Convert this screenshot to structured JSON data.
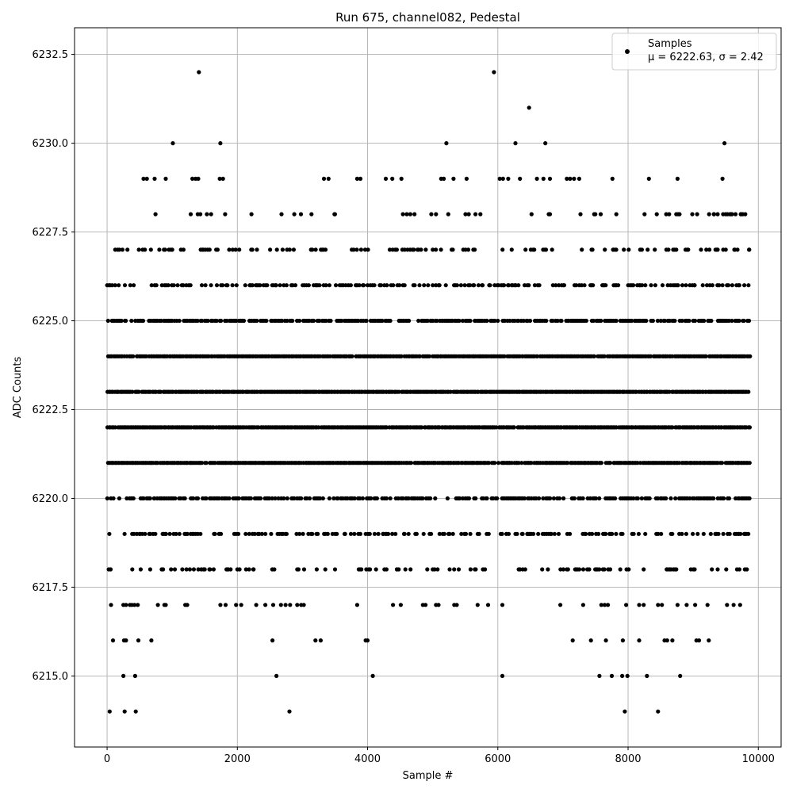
{
  "chart_data": {
    "type": "scatter",
    "title": "Run 675, channel082, Pedestal",
    "xlabel": "Sample #",
    "ylabel": "ADC Counts",
    "xlim": [
      -500,
      10350
    ],
    "ylim": [
      6213.0,
      6233.25
    ],
    "x_ticks": [
      0,
      2000,
      4000,
      6000,
      8000,
      10000
    ],
    "x_tick_labels": [
      "0",
      "2000",
      "4000",
      "6000",
      "8000",
      "10000"
    ],
    "y_ticks": [
      6215.0,
      6217.5,
      6220.0,
      6222.5,
      6225.0,
      6227.5,
      6230.0,
      6232.5
    ],
    "y_tick_labels": [
      "6215.0",
      "6217.5",
      "6220.0",
      "6222.5",
      "6225.0",
      "6227.5",
      "6230.0",
      "6232.5"
    ],
    "grid": true,
    "legend_placement": "top-right",
    "marker_color": "#000000",
    "series": [
      {
        "name": "Samples",
        "stats_label": "μ = 6222.63, σ = 2.42",
        "mean": 6222.63,
        "std": 2.42,
        "n_samples": 9860,
        "x_range": [
          0,
          9860
        ],
        "points": [
          [
            1410,
            6232
          ],
          [
            5940,
            6232
          ],
          [
            6480,
            6231
          ],
          [
            1010,
            6230
          ],
          [
            1740,
            6230
          ],
          [
            5210,
            6230
          ],
          [
            6270,
            6230
          ],
          [
            6730,
            6230
          ],
          [
            9480,
            6230
          ],
          [
            560,
            6229
          ],
          [
            610,
            6229
          ],
          [
            730,
            6229
          ],
          [
            900,
            6229
          ],
          [
            1310,
            6229
          ],
          [
            1360,
            6229
          ],
          [
            1400,
            6229
          ],
          [
            1730,
            6229
          ],
          [
            1780,
            6229
          ],
          [
            3330,
            6229
          ],
          [
            3400,
            6229
          ],
          [
            3840,
            6229
          ],
          [
            3890,
            6229
          ],
          [
            4280,
            6229
          ],
          [
            4380,
            6229
          ],
          [
            4520,
            6229
          ],
          [
            5130,
            6229
          ],
          [
            5170,
            6229
          ],
          [
            5320,
            6229
          ],
          [
            5520,
            6229
          ],
          [
            6030,
            6229
          ],
          [
            6080,
            6229
          ],
          [
            6160,
            6229
          ],
          [
            6340,
            6229
          ],
          [
            6600,
            6229
          ],
          [
            6700,
            6229
          ],
          [
            6800,
            6229
          ],
          [
            7060,
            6229
          ],
          [
            7110,
            6229
          ],
          [
            7170,
            6229
          ],
          [
            7250,
            6229
          ],
          [
            7760,
            6229
          ],
          [
            8320,
            6229
          ],
          [
            8760,
            6229
          ],
          [
            9450,
            6229
          ],
          [
            8440,
            6228
          ],
          [
            8740,
            6228
          ],
          [
            8790,
            6228
          ],
          [
            9060,
            6228
          ],
          [
            9320,
            6228
          ],
          [
            9460,
            6228
          ],
          [
            9580,
            6228
          ],
          [
            9650,
            6228
          ],
          [
            9730,
            6228
          ],
          [
            9800,
            6228
          ],
          [
            7480,
            6228
          ],
          [
            7580,
            6228
          ],
          [
            7820,
            6228
          ],
          [
            8410,
            6227
          ],
          [
            8620,
            6227
          ],
          [
            8740,
            6227
          ],
          [
            8910,
            6227
          ],
          [
            9120,
            6227
          ],
          [
            9370,
            6227
          ],
          [
            9500,
            6227
          ],
          [
            9680,
            6227
          ],
          [
            9860,
            6227
          ],
          [
            7440,
            6227
          ],
          [
            7770,
            6227
          ],
          [
            40,
            6214
          ],
          [
            270,
            6214
          ],
          [
            440,
            6214
          ],
          [
            2800,
            6214
          ],
          [
            7950,
            6214
          ],
          [
            8460,
            6214
          ],
          [
            250,
            6215
          ],
          [
            430,
            6215
          ],
          [
            2600,
            6215
          ],
          [
            4080,
            6215
          ],
          [
            6070,
            6215
          ],
          [
            7560,
            6215
          ],
          [
            7750,
            6215
          ],
          [
            7910,
            6215
          ],
          [
            7990,
            6215
          ],
          [
            8290,
            6215
          ],
          [
            8800,
            6215
          ],
          [
            90,
            6216
          ],
          [
            260,
            6216
          ],
          [
            290,
            6216
          ],
          [
            480,
            6216
          ],
          [
            680,
            6216
          ],
          [
            2540,
            6216
          ],
          [
            3200,
            6216
          ],
          [
            3280,
            6216
          ],
          [
            3970,
            6216
          ],
          [
            4000,
            6216
          ],
          [
            7150,
            6216
          ],
          [
            7430,
            6216
          ],
          [
            7660,
            6216
          ],
          [
            7920,
            6216
          ],
          [
            8170,
            6216
          ],
          [
            8560,
            6216
          ],
          [
            8600,
            6216
          ],
          [
            8680,
            6216
          ],
          [
            9050,
            6216
          ],
          [
            9090,
            6216
          ],
          [
            9240,
            6216
          ],
          [
            1740,
            6217
          ],
          [
            1820,
            6217
          ],
          [
            1980,
            6217
          ],
          [
            2060,
            6217
          ],
          [
            2290,
            6217
          ],
          [
            2430,
            6217
          ],
          [
            2550,
            6217
          ],
          [
            2670,
            6217
          ],
          [
            2740,
            6217
          ],
          [
            2810,
            6217
          ],
          [
            2920,
            6217
          ],
          [
            2980,
            6217
          ],
          [
            3020,
            6217
          ],
          [
            3840,
            6217
          ],
          [
            4390,
            6217
          ],
          [
            4510,
            6217
          ],
          [
            4850,
            6217
          ],
          [
            4890,
            6217
          ],
          [
            5050,
            6217
          ],
          [
            5090,
            6217
          ],
          [
            5330,
            6217
          ],
          [
            5370,
            6217
          ],
          [
            5690,
            6217
          ],
          [
            5850,
            6217
          ],
          [
            6070,
            6217
          ],
          [
            6960,
            6217
          ],
          [
            7310,
            6217
          ],
          [
            7590,
            6217
          ],
          [
            7640,
            6217
          ],
          [
            7690,
            6217
          ],
          [
            1200,
            6217
          ],
          [
            1230,
            6217
          ],
          [
            900,
            6217
          ],
          [
            880,
            6217
          ],
          [
            780,
            6217
          ],
          [
            470,
            6217
          ],
          [
            420,
            6217
          ],
          [
            60,
            6217
          ],
          [
            250,
            6217
          ],
          [
            290,
            6217
          ],
          [
            350,
            6217
          ],
          [
            380,
            6217
          ],
          [
            7970,
            6217
          ],
          [
            8170,
            6217
          ],
          [
            8240,
            6217
          ],
          [
            8460,
            6217
          ],
          [
            8520,
            6217
          ],
          [
            8760,
            6217
          ],
          [
            8900,
            6217
          ],
          [
            9030,
            6217
          ],
          [
            9220,
            6217
          ],
          [
            9520,
            6217
          ],
          [
            9620,
            6217
          ],
          [
            9720,
            6217
          ],
          [
            1040,
            6218
          ],
          [
            1220,
            6218
          ],
          [
            1270,
            6218
          ],
          [
            1500,
            6218
          ],
          [
            1570,
            6218
          ],
          [
            1860,
            6218
          ],
          [
            2000,
            6218
          ],
          [
            2180,
            6218
          ],
          [
            2250,
            6218
          ],
          [
            3350,
            6218
          ],
          [
            3500,
            6218
          ],
          [
            3980,
            6218
          ],
          [
            4130,
            6218
          ],
          [
            4450,
            6218
          ],
          [
            4580,
            6218
          ],
          [
            4660,
            6218
          ],
          [
            5000,
            6218
          ],
          [
            5260,
            6218
          ],
          [
            5400,
            6218
          ],
          [
            5660,
            6218
          ],
          [
            6320,
            6218
          ],
          [
            6420,
            6218
          ],
          [
            7060,
            6218
          ],
          [
            7210,
            6218
          ],
          [
            4240,
            6219
          ],
          [
            4560,
            6219
          ],
          [
            4860,
            6219
          ],
          [
            5440,
            6219
          ],
          [
            6130,
            6219
          ],
          [
            6270,
            6219
          ],
          [
            6460,
            6219
          ],
          [
            6620,
            6219
          ],
          [
            6820,
            6219
          ],
          [
            7350,
            6219
          ]
        ],
        "dense_levels": [
          6218,
          6219,
          6220,
          6221,
          6222,
          6223,
          6224,
          6225,
          6226,
          6227,
          6228
        ]
      }
    ]
  }
}
